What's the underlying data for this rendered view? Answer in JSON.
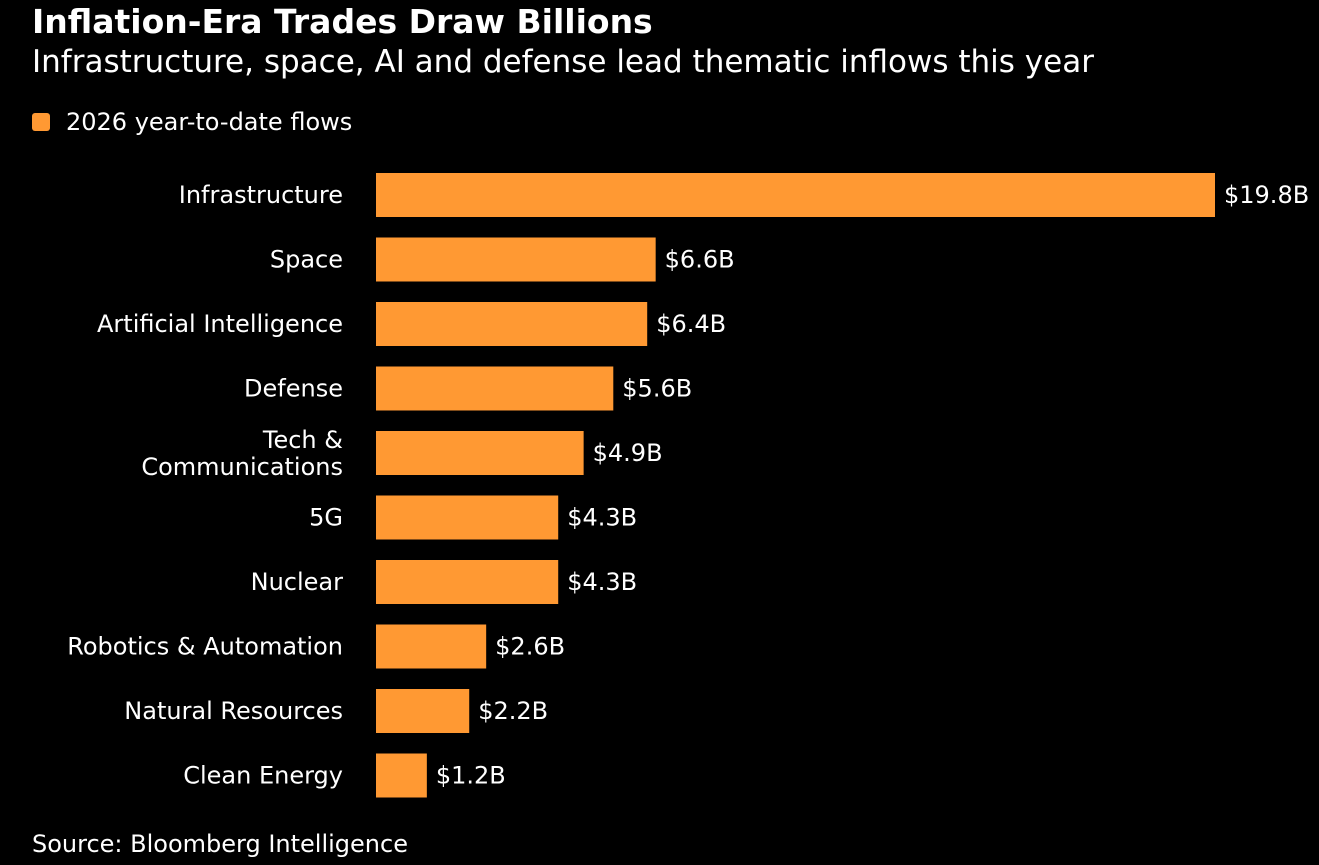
{
  "chart_data": {
    "type": "bar",
    "orientation": "horizontal",
    "title": "Inflation-Era Trades Draw Billions",
    "subtitle": "Infrastructure, space, AI and defense lead thematic inflows this year",
    "categories": [
      "Infrastructure",
      "Space",
      "Artificial Intelligence",
      "Defense",
      "Tech & Communications",
      "5G",
      "Nuclear",
      "Robotics & Automation",
      "Natural Resources",
      "Clean Energy"
    ],
    "series": [
      {
        "name": "2026 year-to-date flows",
        "color": "#ff9933",
        "values": [
          19.8,
          6.6,
          6.4,
          5.6,
          4.9,
          4.3,
          4.3,
          2.6,
          2.2,
          1.2
        ],
        "labels": [
          "$19.8B",
          "$6.6B",
          "$6.4B",
          "$5.6B",
          "$4.9B",
          "$4.3B",
          "$4.3B",
          "$2.6B",
          "$2.2B",
          "$1.2B"
        ]
      }
    ],
    "xlim": [
      0,
      19.8
    ],
    "grid": false,
    "legend_position": "top-left",
    "source": "Source: Bloomberg Intelligence"
  }
}
